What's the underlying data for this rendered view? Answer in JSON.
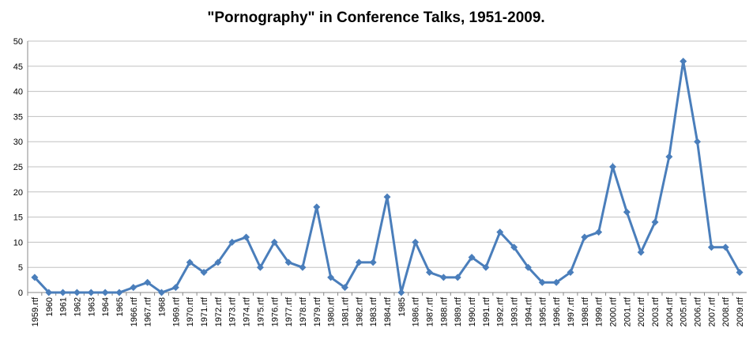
{
  "chart_data": {
    "type": "line",
    "title": "\"Pornography\" in Conference Talks, 1951-2009.",
    "categories": [
      "1959.rtf",
      "1960",
      "1961",
      "1962",
      "1963",
      "1964",
      "1965",
      "1966.rtf",
      "1967.rtf",
      "1968",
      "1969.rtf",
      "1970.rtf",
      "1971.rtf",
      "1972.rtf",
      "1973.rtf",
      "1974.rtf",
      "1975.rtf",
      "1976.rtf",
      "1977.rtf",
      "1978.rtf",
      "1979.rtf",
      "1980.rtf",
      "1981.rtf",
      "1982.rtf",
      "1983.rtf",
      "1984.rtf",
      "1985",
      "1986.rtf",
      "1987.rtf",
      "1988.rtf",
      "1989.rtf",
      "1990.rtf",
      "1991.rtf",
      "1992.rtf",
      "1993.rtf",
      "1994.rtf",
      "1995.rtf",
      "1996.rtf",
      "1997.rtf",
      "1998.rtf",
      "1999.rtf",
      "2000.rtf",
      "2001.rtf",
      "2002.rtf",
      "2003.rtf",
      "2004.rtf",
      "2005.rtf",
      "2006.rtf",
      "2007.rtf",
      "2008.rtf",
      "2009.rtf"
    ],
    "values": [
      3,
      0,
      0,
      0,
      0,
      0,
      0,
      1,
      2,
      0,
      1,
      6,
      4,
      6,
      10,
      11,
      5,
      10,
      6,
      5,
      17,
      3,
      1,
      6,
      6,
      19,
      0,
      10,
      4,
      3,
      3,
      7,
      5,
      12,
      9,
      5,
      2,
      2,
      4,
      11,
      12,
      25,
      16,
      8,
      14,
      27,
      46,
      30,
      9,
      9,
      4
    ],
    "color": "#4a7ebb",
    "ylim": [
      0,
      50
    ],
    "yticks": [
      0,
      5,
      10,
      15,
      20,
      25,
      30,
      35,
      40,
      45,
      50
    ],
    "grid": true
  }
}
